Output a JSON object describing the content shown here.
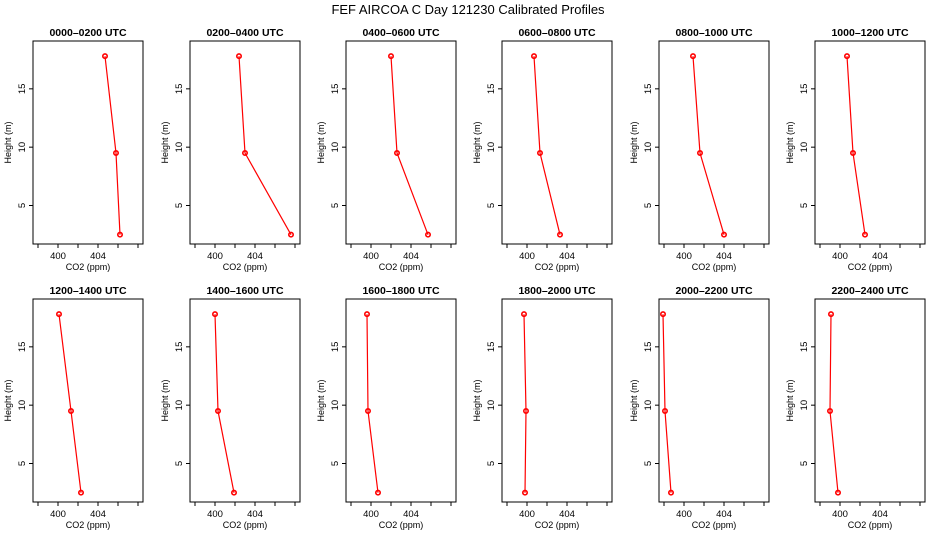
{
  "figure_title": "FEF AIRCOA C  Day 121230  Calibrated Profiles",
  "chart_data": [
    {
      "type": "line",
      "title": "0000–0200 UTC",
      "xlabel": "CO2 (ppm)",
      "ylabel": "Height (m)",
      "xticks": [
        "400",
        "404"
      ],
      "yticks": [
        "5",
        "10",
        "15"
      ],
      "xlim": [
        397.5,
        408.5
      ],
      "ylim": [
        1.7,
        19.1
      ],
      "heights": [
        17.8,
        9.5,
        2.5
      ],
      "co2": [
        404.7,
        405.8,
        406.2
      ]
    },
    {
      "type": "line",
      "title": "0200–0400 UTC",
      "xlabel": "CO2 (ppm)",
      "ylabel": "Height (m)",
      "xticks": [
        "400",
        "404"
      ],
      "yticks": [
        "5",
        "10",
        "15"
      ],
      "xlim": [
        397.5,
        408.5
      ],
      "ylim": [
        1.7,
        19.1
      ],
      "heights": [
        17.8,
        9.5,
        2.5
      ],
      "co2": [
        402.4,
        403.0,
        407.6
      ]
    },
    {
      "type": "line",
      "title": "0400–0600 UTC",
      "xlabel": "CO2 (ppm)",
      "ylabel": "Height (m)",
      "xticks": [
        "400",
        "404"
      ],
      "yticks": [
        "5",
        "10",
        "15"
      ],
      "xlim": [
        397.5,
        408.5
      ],
      "ylim": [
        1.7,
        19.1
      ],
      "heights": [
        17.8,
        9.5,
        2.5
      ],
      "co2": [
        402.0,
        402.6,
        405.7
      ]
    },
    {
      "type": "line",
      "title": "0600–0800 UTC",
      "xlabel": "CO2 (ppm)",
      "ylabel": "Height (m)",
      "xticks": [
        "400",
        "404"
      ],
      "yticks": [
        "5",
        "10",
        "15"
      ],
      "xlim": [
        397.5,
        408.5
      ],
      "ylim": [
        1.7,
        19.1
      ],
      "heights": [
        17.8,
        9.5,
        2.5
      ],
      "co2": [
        400.7,
        401.3,
        403.3
      ]
    },
    {
      "type": "line",
      "title": "0800–1000 UTC",
      "xlabel": "CO2 (ppm)",
      "ylabel": "Height (m)",
      "xticks": [
        "400",
        "404"
      ],
      "yticks": [
        "5",
        "10",
        "15"
      ],
      "xlim": [
        397.5,
        408.5
      ],
      "ylim": [
        1.7,
        19.1
      ],
      "heights": [
        17.8,
        9.5,
        2.5
      ],
      "co2": [
        400.9,
        401.6,
        404.0
      ]
    },
    {
      "type": "line",
      "title": "1000–1200 UTC",
      "xlabel": "CO2 (ppm)",
      "ylabel": "Height (m)",
      "xticks": [
        "400",
        "404"
      ],
      "yticks": [
        "5",
        "10",
        "15"
      ],
      "xlim": [
        397.5,
        408.5
      ],
      "ylim": [
        1.7,
        19.1
      ],
      "heights": [
        17.8,
        9.5,
        2.5
      ],
      "co2": [
        400.7,
        401.3,
        402.5
      ]
    },
    {
      "type": "line",
      "title": "1200–1400 UTC",
      "xlabel": "CO2 (ppm)",
      "ylabel": "Height (m)",
      "xticks": [
        "400",
        "404"
      ],
      "yticks": [
        "5",
        "10",
        "15"
      ],
      "xlim": [
        397.5,
        408.5
      ],
      "ylim": [
        1.7,
        19.1
      ],
      "heights": [
        17.8,
        9.5,
        2.5
      ],
      "co2": [
        400.1,
        401.3,
        402.3
      ]
    },
    {
      "type": "line",
      "title": "1400–1600 UTC",
      "xlabel": "CO2 (ppm)",
      "ylabel": "Height (m)",
      "xticks": [
        "400",
        "404"
      ],
      "yticks": [
        "5",
        "10",
        "15"
      ],
      "xlim": [
        397.5,
        408.5
      ],
      "ylim": [
        1.7,
        19.1
      ],
      "heights": [
        17.8,
        9.5,
        2.5
      ],
      "co2": [
        400.0,
        400.3,
        401.9
      ]
    },
    {
      "type": "line",
      "title": "1600–1800 UTC",
      "xlabel": "CO2 (ppm)",
      "ylabel": "Height (m)",
      "xticks": [
        "400",
        "404"
      ],
      "yticks": [
        "5",
        "10",
        "15"
      ],
      "xlim": [
        397.5,
        408.5
      ],
      "ylim": [
        1.7,
        19.1
      ],
      "heights": [
        17.8,
        9.5,
        2.5
      ],
      "co2": [
        399.6,
        399.7,
        400.7
      ]
    },
    {
      "type": "line",
      "title": "1800–2000 UTC",
      "xlabel": "CO2 (ppm)",
      "ylabel": "Height (m)",
      "xticks": [
        "400",
        "404"
      ],
      "yticks": [
        "5",
        "10",
        "15"
      ],
      "xlim": [
        397.5,
        408.5
      ],
      "ylim": [
        1.7,
        19.1
      ],
      "heights": [
        17.8,
        9.5,
        2.5
      ],
      "co2": [
        399.7,
        399.9,
        399.8
      ]
    },
    {
      "type": "line",
      "title": "2000–2200 UTC",
      "xlabel": "CO2 (ppm)",
      "ylabel": "Height (m)",
      "xticks": [
        "400",
        "404"
      ],
      "yticks": [
        "5",
        "10",
        "15"
      ],
      "xlim": [
        397.5,
        408.5
      ],
      "ylim": [
        1.7,
        19.1
      ],
      "heights": [
        17.8,
        9.5,
        2.5
      ],
      "co2": [
        397.9,
        398.1,
        398.7
      ]
    },
    {
      "type": "line",
      "title": "2200–2400 UTC",
      "xlabel": "CO2 (ppm)",
      "ylabel": "Height (m)",
      "xticks": [
        "400",
        "404"
      ],
      "yticks": [
        "5",
        "10",
        "15"
      ],
      "xlim": [
        397.5,
        408.5
      ],
      "ylim": [
        1.7,
        19.1
      ],
      "heights": [
        17.8,
        9.5,
        2.5
      ],
      "co2": [
        399.1,
        399.0,
        399.8
      ]
    }
  ]
}
